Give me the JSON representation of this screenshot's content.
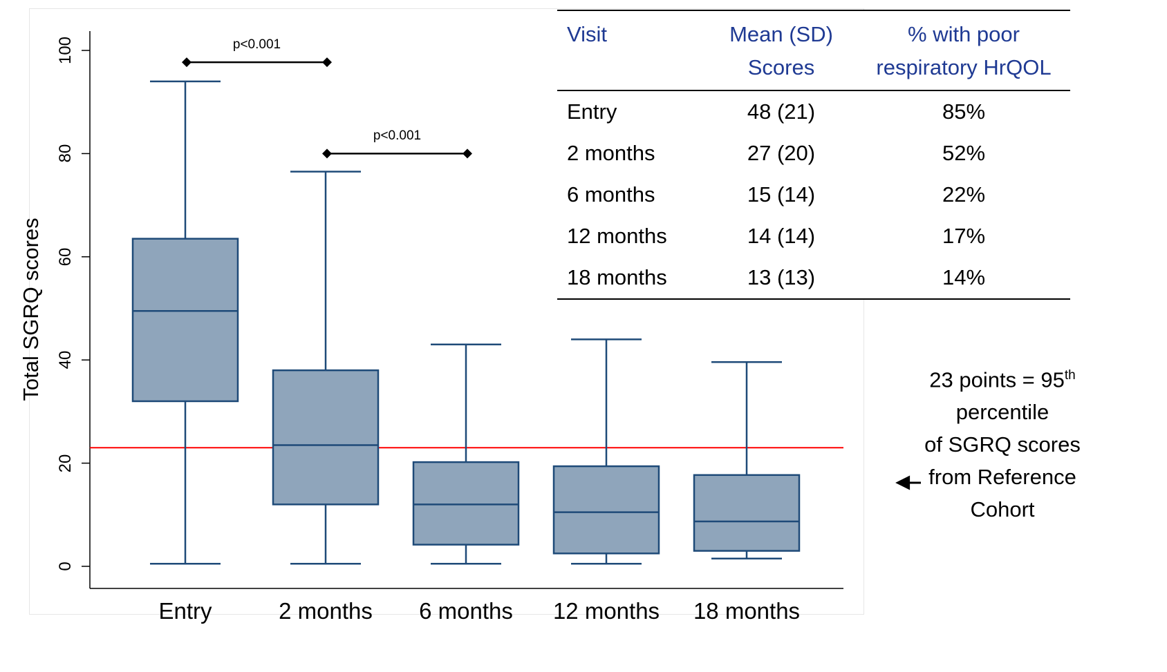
{
  "chart_data": {
    "type": "box",
    "xlabel": "",
    "ylabel": "Total SGRQ scores",
    "ylim": [
      0,
      100
    ],
    "yticks": [
      0,
      20,
      40,
      60,
      80,
      100
    ],
    "grid": false,
    "categories": [
      "Entry",
      "2 months",
      "6 months",
      "12 months",
      "18 months"
    ],
    "box_color": "#8fa5bb",
    "line_color": "#1e4a78",
    "boxes": [
      {
        "category": "Entry",
        "min": 0.5,
        "q1": 32,
        "median": 49.5,
        "q3": 63.5,
        "max": 94
      },
      {
        "category": "2 months",
        "min": 0.5,
        "q1": 12,
        "median": 23.5,
        "q3": 38,
        "max": 76.5
      },
      {
        "category": "6 months",
        "min": 0.5,
        "q1": 4.2,
        "median": 12,
        "q3": 20.2,
        "max": 43
      },
      {
        "category": "12 months",
        "min": 0.5,
        "q1": 2.5,
        "median": 10.5,
        "q3": 19.4,
        "max": 44
      },
      {
        "category": "18 months",
        "min": 1.5,
        "q1": 3,
        "median": 8.7,
        "q3": 17.7,
        "max": 39.6
      }
    ],
    "reference_line": {
      "y": 23,
      "color": "#ff0000"
    },
    "significance": [
      {
        "from": "Entry",
        "to": "2 months",
        "y": 97.7,
        "label": "p<0.001"
      },
      {
        "from": "2 months",
        "to": "6 months",
        "y": 80,
        "label": "p<0.001"
      }
    ]
  },
  "table": {
    "headers": {
      "visit": "Visit",
      "mean_1": "Mean (SD)",
      "mean_2": "Scores",
      "pct_1": "% with poor",
      "pct_2": "respiratory HrQOL"
    },
    "rows": [
      {
        "visit": "Entry",
        "mean": "48 (21)",
        "pct": "85%"
      },
      {
        "visit": "2 months",
        "mean": "27 (20)",
        "pct": "52%"
      },
      {
        "visit": "6 months",
        "mean": "15 (14)",
        "pct": "22%"
      },
      {
        "visit": "12 months",
        "mean": "14 (14)",
        "pct": "17%"
      },
      {
        "visit": "18 months",
        "mean": "13 (13)",
        "pct": "14%"
      }
    ]
  },
  "annotation": {
    "line1_pre": "23 points = 95",
    "line1_sup": "th",
    "line2": "percentile",
    "line3": "of SGRQ scores",
    "line4": "from Reference",
    "line5": "Cohort"
  }
}
